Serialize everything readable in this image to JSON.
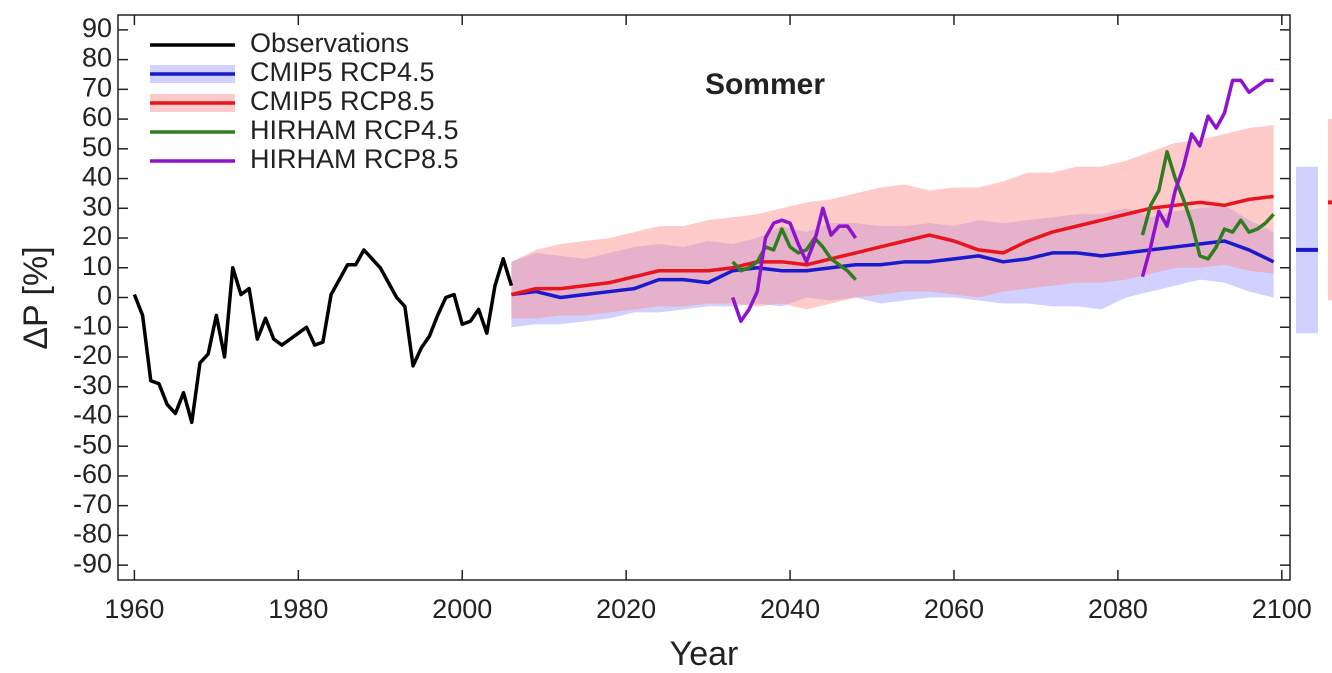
{
  "chart_data": {
    "type": "line",
    "title": "Sommer",
    "xlabel": "Year",
    "ylabel": "ΔP [%]",
    "xlim": [
      1958,
      2101
    ],
    "ylim": [
      -95,
      95
    ],
    "xticks": [
      1960,
      1980,
      2000,
      2020,
      2040,
      2060,
      2080,
      2100
    ],
    "yticks": [
      -90,
      -80,
      -70,
      -60,
      -50,
      -40,
      -30,
      -20,
      -10,
      0,
      10,
      20,
      30,
      40,
      50,
      60,
      70,
      80,
      90
    ],
    "legend": "upper-left",
    "series": [
      {
        "name": "Observations",
        "color": "#000000",
        "x": [
          1960,
          1961,
          1962,
          1963,
          1964,
          1965,
          1966,
          1967,
          1968,
          1969,
          1970,
          1971,
          1972,
          1973,
          1974,
          1975,
          1976,
          1977,
          1978,
          1979,
          1980,
          1981,
          1982,
          1983,
          1984,
          1985,
          1986,
          1987,
          1988,
          1989,
          1990,
          1991,
          1992,
          1993,
          1994,
          1995,
          1996,
          1997,
          1998,
          1999,
          2000,
          2001,
          2002,
          2003,
          2004,
          2005,
          2006
        ],
        "values": [
          1,
          -6,
          -28,
          -29,
          -36,
          -39,
          -32,
          -42,
          -22,
          -19,
          -6,
          -20,
          10,
          1,
          3,
          -14,
          -7,
          -14,
          -16,
          -14,
          -12,
          -10,
          -16,
          -15,
          1,
          6,
          11,
          11,
          16,
          13,
          10,
          5,
          0,
          -3,
          -23,
          -17,
          -13,
          -6,
          0,
          1,
          -9,
          -8,
          -4,
          -12,
          4,
          13,
          4
        ]
      },
      {
        "name": "CMIP5 RCP4.5",
        "color": "#1a1acc",
        "band_color": "#9999ff",
        "x": [
          2006,
          2009,
          2012,
          2015,
          2018,
          2021,
          2024,
          2027,
          2030,
          2033,
          2036,
          2039,
          2042,
          2045,
          2048,
          2051,
          2054,
          2057,
          2060,
          2063,
          2066,
          2069,
          2072,
          2075,
          2078,
          2081,
          2084,
          2087,
          2090,
          2093,
          2096,
          2099
        ],
        "values": [
          1,
          2,
          0,
          1,
          2,
          3,
          6,
          6,
          5,
          9,
          10,
          9,
          9,
          10,
          11,
          11,
          12,
          12,
          13,
          14,
          12,
          13,
          15,
          15,
          14,
          15,
          16,
          17,
          18,
          19,
          16,
          12
        ],
        "lower": [
          -10,
          -9,
          -9,
          -8,
          -7,
          -5,
          -5,
          -4,
          -3,
          -3,
          -2,
          -3,
          0,
          -1,
          0,
          -2,
          -1,
          0,
          0,
          -1,
          -2,
          -2,
          -3,
          -3,
          -4,
          0,
          2,
          4,
          6,
          5,
          2,
          0
        ],
        "upper": [
          12,
          15,
          14,
          13,
          15,
          17,
          18,
          17,
          19,
          18,
          20,
          24,
          22,
          25,
          25,
          24,
          24,
          25,
          24,
          26,
          25,
          26,
          27,
          28,
          28,
          30,
          27,
          29,
          30,
          31,
          26,
          22
        ],
        "range": [
          -12,
          16,
          44
        ]
      },
      {
        "name": "CMIP5 RCP8.5",
        "color": "#e8141e",
        "band_color": "#ff8a8a",
        "x": [
          2006,
          2009,
          2012,
          2015,
          2018,
          2021,
          2024,
          2027,
          2030,
          2033,
          2036,
          2039,
          2042,
          2045,
          2048,
          2051,
          2054,
          2057,
          2060,
          2063,
          2066,
          2069,
          2072,
          2075,
          2078,
          2081,
          2084,
          2087,
          2090,
          2093,
          2096,
          2099
        ],
        "values": [
          1,
          3,
          3,
          4,
          5,
          7,
          9,
          9,
          9,
          10,
          12,
          12,
          11,
          13,
          15,
          17,
          19,
          21,
          19,
          16,
          15,
          19,
          22,
          24,
          26,
          28,
          30,
          31,
          32,
          31,
          33,
          34
        ],
        "lower": [
          -7,
          -7,
          -6,
          -6,
          -5,
          -4,
          -3,
          -3,
          -2,
          -2,
          -3,
          -2,
          -4,
          -2,
          0,
          1,
          2,
          2,
          1,
          0,
          2,
          3,
          4,
          5,
          5,
          6,
          8,
          10,
          10,
          11,
          9,
          8
        ],
        "upper": [
          12,
          16,
          18,
          19,
          20,
          22,
          24,
          24,
          26,
          27,
          28,
          30,
          32,
          33,
          35,
          37,
          38,
          36,
          37,
          37,
          39,
          42,
          42,
          44,
          44,
          46,
          49,
          52,
          53,
          55,
          57,
          58
        ],
        "range": [
          -1,
          32,
          60
        ]
      },
      {
        "name": "HIRHAM RCP4.5",
        "color": "#2e7d1e",
        "x": [
          2033,
          2034,
          2035,
          2036,
          2037,
          2038,
          2039,
          2040,
          2041,
          2042,
          2043,
          2044,
          2045,
          2046,
          2047,
          2048,
          null,
          2083,
          2084,
          2085,
          2086,
          2087,
          2088,
          2089,
          2090,
          2091,
          2092,
          2093,
          2094,
          2095,
          2096,
          2097,
          2098,
          2099
        ],
        "values": [
          12,
          9,
          10,
          12,
          17,
          16,
          23,
          17,
          15,
          16,
          20,
          17,
          13,
          11,
          9,
          6,
          null,
          21,
          31,
          36,
          49,
          40,
          33,
          25,
          14,
          13,
          17,
          23,
          22,
          26,
          22,
          23,
          25,
          28
        ]
      },
      {
        "name": "HIRHAM RCP8.5",
        "color": "#8f12cc",
        "x": [
          2033,
          2034,
          2035,
          2036,
          2037,
          2038,
          2039,
          2040,
          2041,
          2042,
          2043,
          2044,
          2045,
          2046,
          2047,
          2048,
          null,
          2083,
          2084,
          2085,
          2086,
          2087,
          2088,
          2089,
          2090,
          2091,
          2092,
          2093,
          2094,
          2095,
          2096,
          2097,
          2098,
          2099
        ],
        "values": [
          0,
          -8,
          -4,
          2,
          20,
          25,
          26,
          25,
          18,
          12,
          19,
          30,
          21,
          24,
          24,
          20,
          null,
          7,
          17,
          29,
          24,
          36,
          44,
          55,
          51,
          61,
          57,
          62,
          73,
          73,
          69,
          71,
          73,
          73
        ]
      }
    ]
  }
}
